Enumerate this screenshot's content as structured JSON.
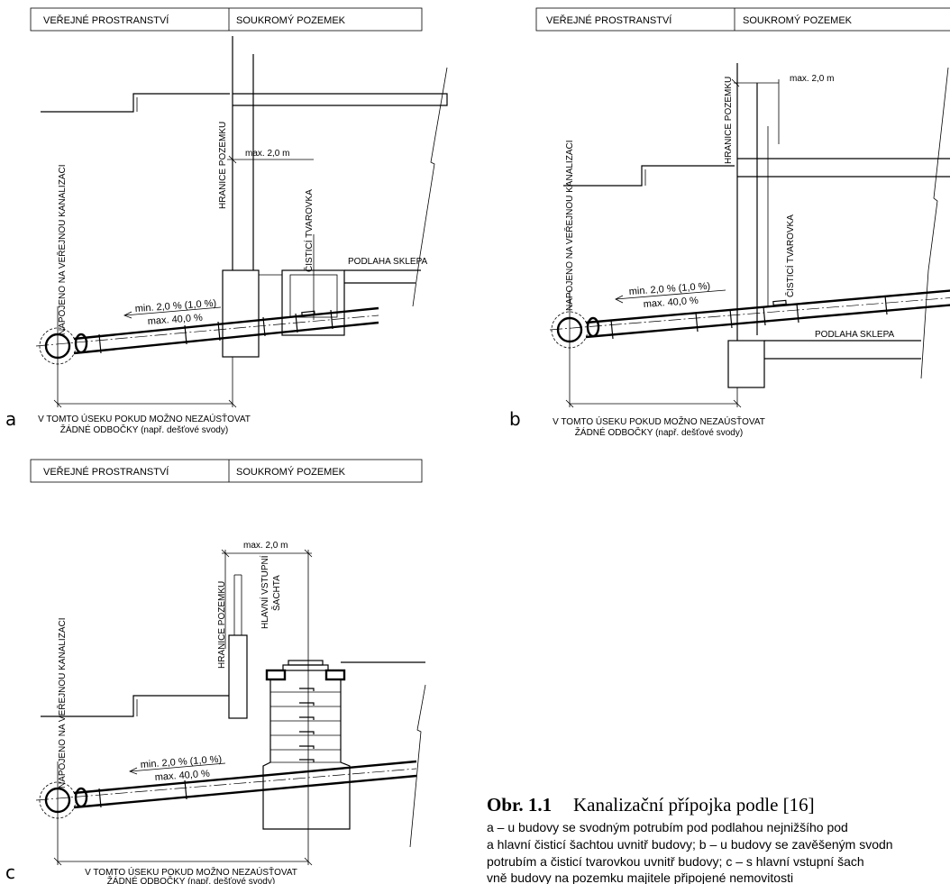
{
  "panels": {
    "a": {
      "letter": "a",
      "header_left": "VEŘEJNÉ PROSTRANSTVÍ",
      "header_right": "SOUKROMÝ POZEMEK",
      "connection_label": "NAPOJENO NA VEŘEJNOU KANALIZACI",
      "boundary_label": "HRANICE POZEMKU",
      "max_distance": "max. 2,0 m",
      "fitting_label": "ČISTICÍ TVAROVKA",
      "floor_label": "PODLAHA SKLEPA",
      "slope_min": "min. 2,0 % (1,0 %)",
      "slope_max": "max. 40,0 %",
      "note_line1": "V TOMTO ÚSEKU POKUD MOŽNO NEZAÚSŤOVAT",
      "note_line2": "ŽÁDNÉ ODBOČKY (např. dešťové svody)"
    },
    "b": {
      "letter": "b",
      "header_left": "VEŘEJNÉ PROSTRANSTVÍ",
      "header_right": "SOUKROMÝ POZEMEK",
      "connection_label": "NAPOJENO NA VEŘEJNOU KANALIZACI",
      "boundary_label": "HRANICE POZEMKU",
      "max_distance": "max. 2,0 m",
      "fitting_label": "ČISTICÍ TVAROVKA",
      "floor_label": "PODLAHA SKLEPA",
      "slope_min": "min. 2,0 % (1,0 %)",
      "slope_max": "max. 40,0 %",
      "note_line1": "V TOMTO ÚSEKU POKUD MOŽNO NEZAÚSŤOVAT",
      "note_line2": "ŽÁDNÉ ODBOČKY (např. dešťové svody)"
    },
    "c": {
      "letter": "c",
      "header_left": "VEŘEJNÉ PROSTRANSTVÍ",
      "header_right": "SOUKROMÝ POZEMEK",
      "connection_label": "NAPOJENO NA VEŘEJNOU KANALIZACI",
      "boundary_label": "HRANICE POZEMKU",
      "max_distance": "max. 2,0 m",
      "shaft_label_1": "HLAVNÍ VSTUPNÍ",
      "shaft_label_2": "ŠACHTA",
      "slope_min": "min. 2,0 % (1,0 %)",
      "slope_max": "max. 40,0 %",
      "note_line1": "V TOMTO ÚSEKU POKUD MOŽNO NEZAÚSŤOVAT",
      "note_line2": "ŽÁDNÉ ODBOČKY (např. dešťové svody)"
    }
  },
  "caption": {
    "number": "Obr. 1.1",
    "title": "Kanalizační přípojka podle [16]",
    "line1": "a – u budovy se svodným potrubím pod podlahou nejnižšího pod",
    "line2": "a hlavní čisticí šachtou uvnitř budovy; b – u budovy se zavěšeným svodn",
    "line3": "potrubím a čisticí tvarovkou uvnitř budovy; c – s hlavní vstupní šach",
    "line4": "vně budovy na pozemku majitele připojené nemovitosti"
  }
}
